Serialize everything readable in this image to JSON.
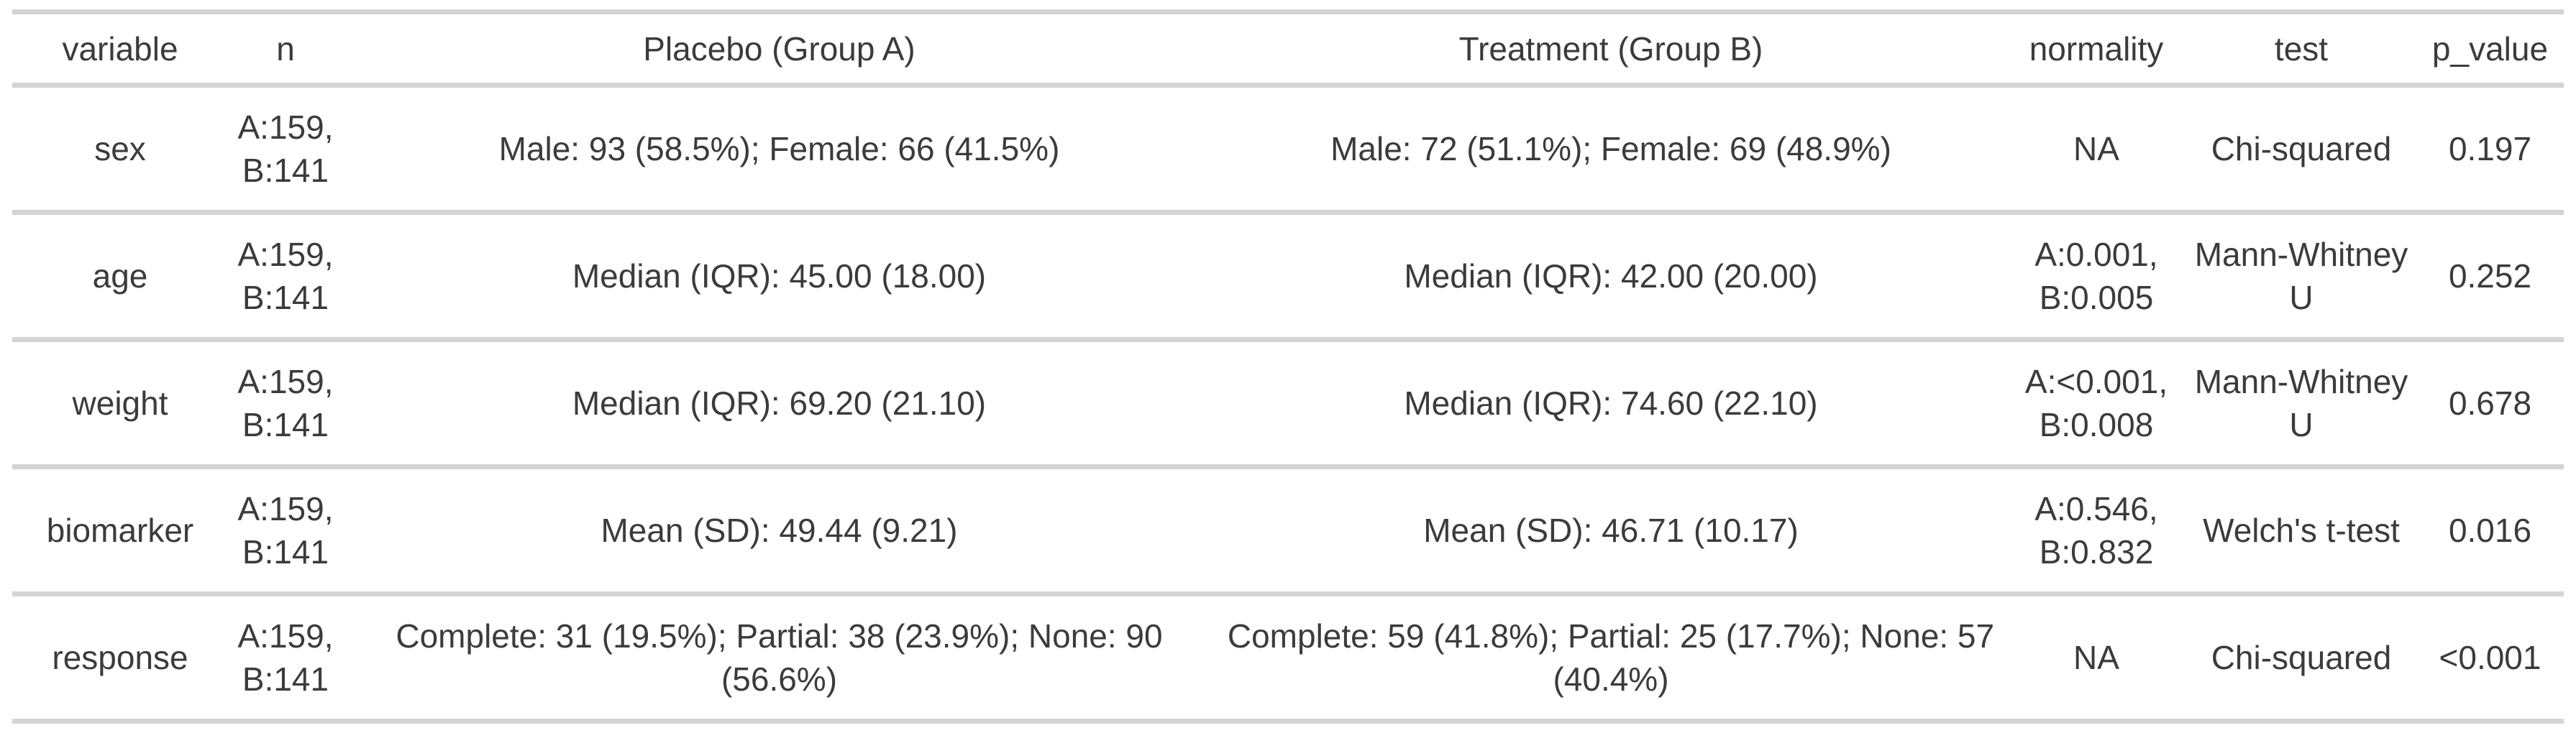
{
  "chart_data": {
    "type": "table",
    "columns": [
      "variable",
      "n",
      "Placebo (Group A)",
      "Treatment (Group B)",
      "normality",
      "test",
      "p_value"
    ],
    "rows": [
      [
        "sex",
        "A:159,\nB:141",
        "Male: 93 (58.5%); Female: 66 (41.5%)",
        "Male: 72 (51.1%); Female: 69 (48.9%)",
        "NA",
        "Chi-squared",
        "0.197"
      ],
      [
        "age",
        "A:159,\nB:141",
        "Median (IQR): 45.00 (18.00)",
        "Median (IQR): 42.00 (20.00)",
        "A:0.001,\nB:0.005",
        "Mann-Whitney\nU",
        "0.252"
      ],
      [
        "weight",
        "A:159,\nB:141",
        "Median (IQR): 69.20 (21.10)",
        "Median (IQR): 74.60 (22.10)",
        "A:<0.001,\nB:0.008",
        "Mann-Whitney\nU",
        "0.678"
      ],
      [
        "biomarker",
        "A:159,\nB:141",
        "Mean (SD): 49.44 (9.21)",
        "Mean (SD): 46.71 (10.17)",
        "A:0.546,\nB:0.832",
        "Welch's t-test",
        "0.016"
      ],
      [
        "response",
        "A:159,\nB:141",
        "Complete: 31 (19.5%); Partial: 38 (23.9%); None: 90\n(56.6%)",
        "Complete: 59 (41.8%); Partial: 25 (17.7%); None: 57\n(40.4%)",
        "NA",
        "Chi-squared",
        "<0.001"
      ]
    ],
    "title": "",
    "layout_hints": {
      "grid": "horizontal-rules-only",
      "cell_alignment": "center"
    }
  },
  "colors": {
    "background": "#ffffff",
    "text": "#3b3b3b",
    "rule": "#d4d4d4"
  }
}
